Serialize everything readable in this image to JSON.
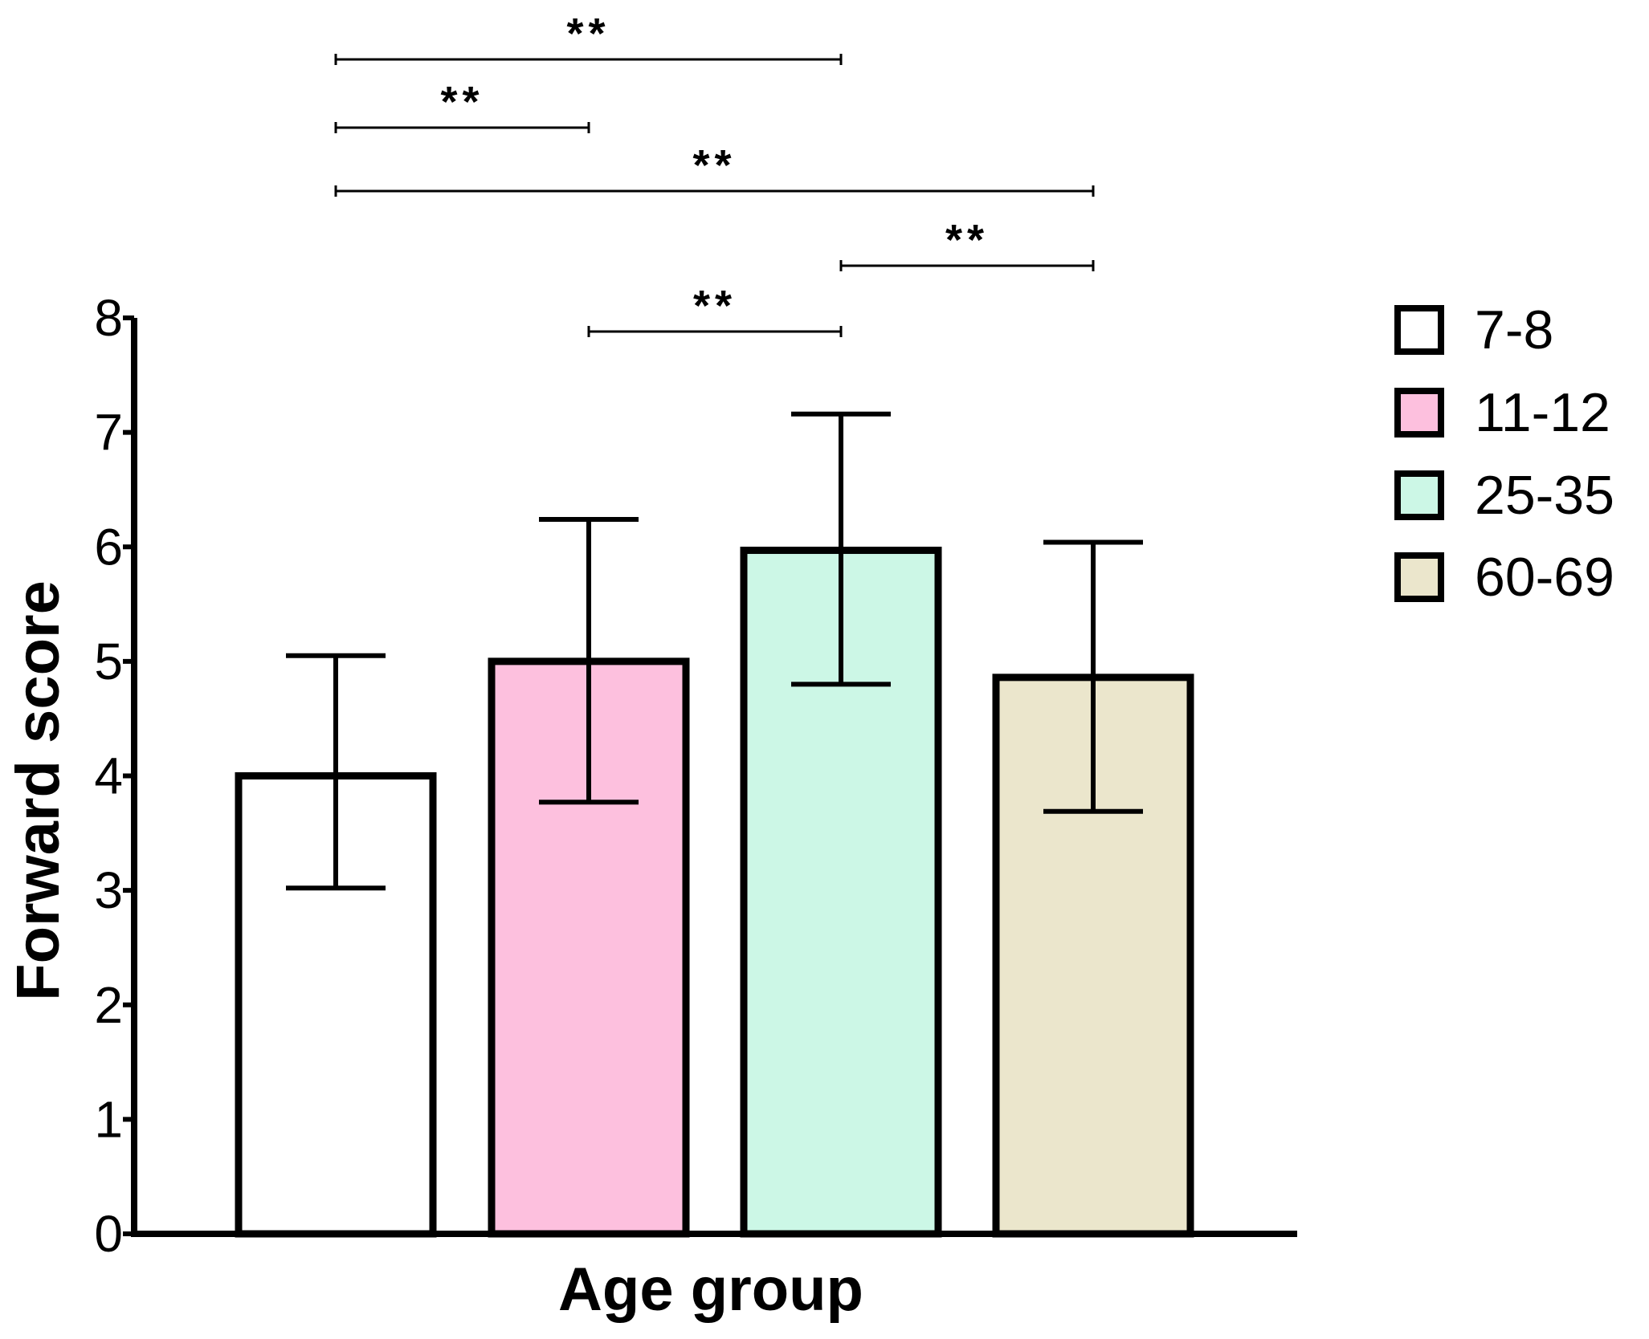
{
  "chart_data": {
    "type": "bar",
    "title": "",
    "xlabel": "Age group",
    "ylabel": "Forward score",
    "ylim": [
      0,
      8
    ],
    "yticks": [
      "0",
      "1",
      "2",
      "3",
      "4",
      "5",
      "6",
      "7",
      "8"
    ],
    "categories": [
      "7-8",
      "11-12",
      "25-35",
      "60-69"
    ],
    "values": [
      4.0,
      5.0,
      5.97,
      4.86
    ],
    "error_low": [
      3.02,
      3.77,
      4.8,
      3.69
    ],
    "error_high": [
      5.05,
      6.24,
      7.16,
      6.04
    ],
    "colors": [
      "#ffffff",
      "#fdc0de",
      "#ccf7e6",
      "#ebe6cc"
    ],
    "legend": {
      "position": "right",
      "entries": [
        "7-8",
        "11-12",
        "25-35",
        "60-69"
      ]
    },
    "significance": [
      {
        "from": 0,
        "to": 2,
        "label": "**"
      },
      {
        "from": 0,
        "to": 1,
        "label": "**"
      },
      {
        "from": 0,
        "to": 3,
        "label": "**"
      },
      {
        "from": 2,
        "to": 3,
        "label": "**"
      },
      {
        "from": 1,
        "to": 2,
        "label": "**"
      }
    ]
  }
}
